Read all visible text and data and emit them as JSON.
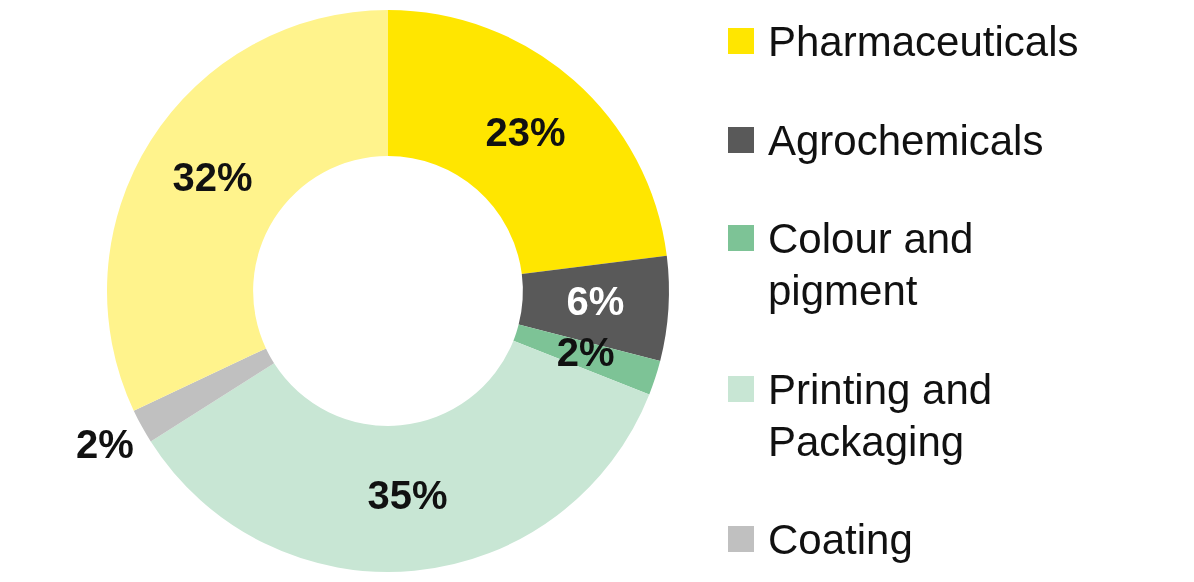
{
  "chart_data": {
    "type": "donut",
    "categories": [
      "Pharmaceuticals",
      "Agrochemicals",
      "Colour and pigment",
      "Printing and Packaging",
      "Coating",
      null
    ],
    "values": [
      23,
      6,
      2,
      35,
      2,
      32
    ],
    "colors": [
      "#ffe600",
      "#595959",
      "#7dc396",
      "#c8e6d4",
      "#c0c0c0",
      "#fff38c"
    ],
    "value_labels": [
      "23%",
      "6%",
      "2%",
      "35%",
      "2%",
      "32%"
    ],
    "legend": "right"
  }
}
